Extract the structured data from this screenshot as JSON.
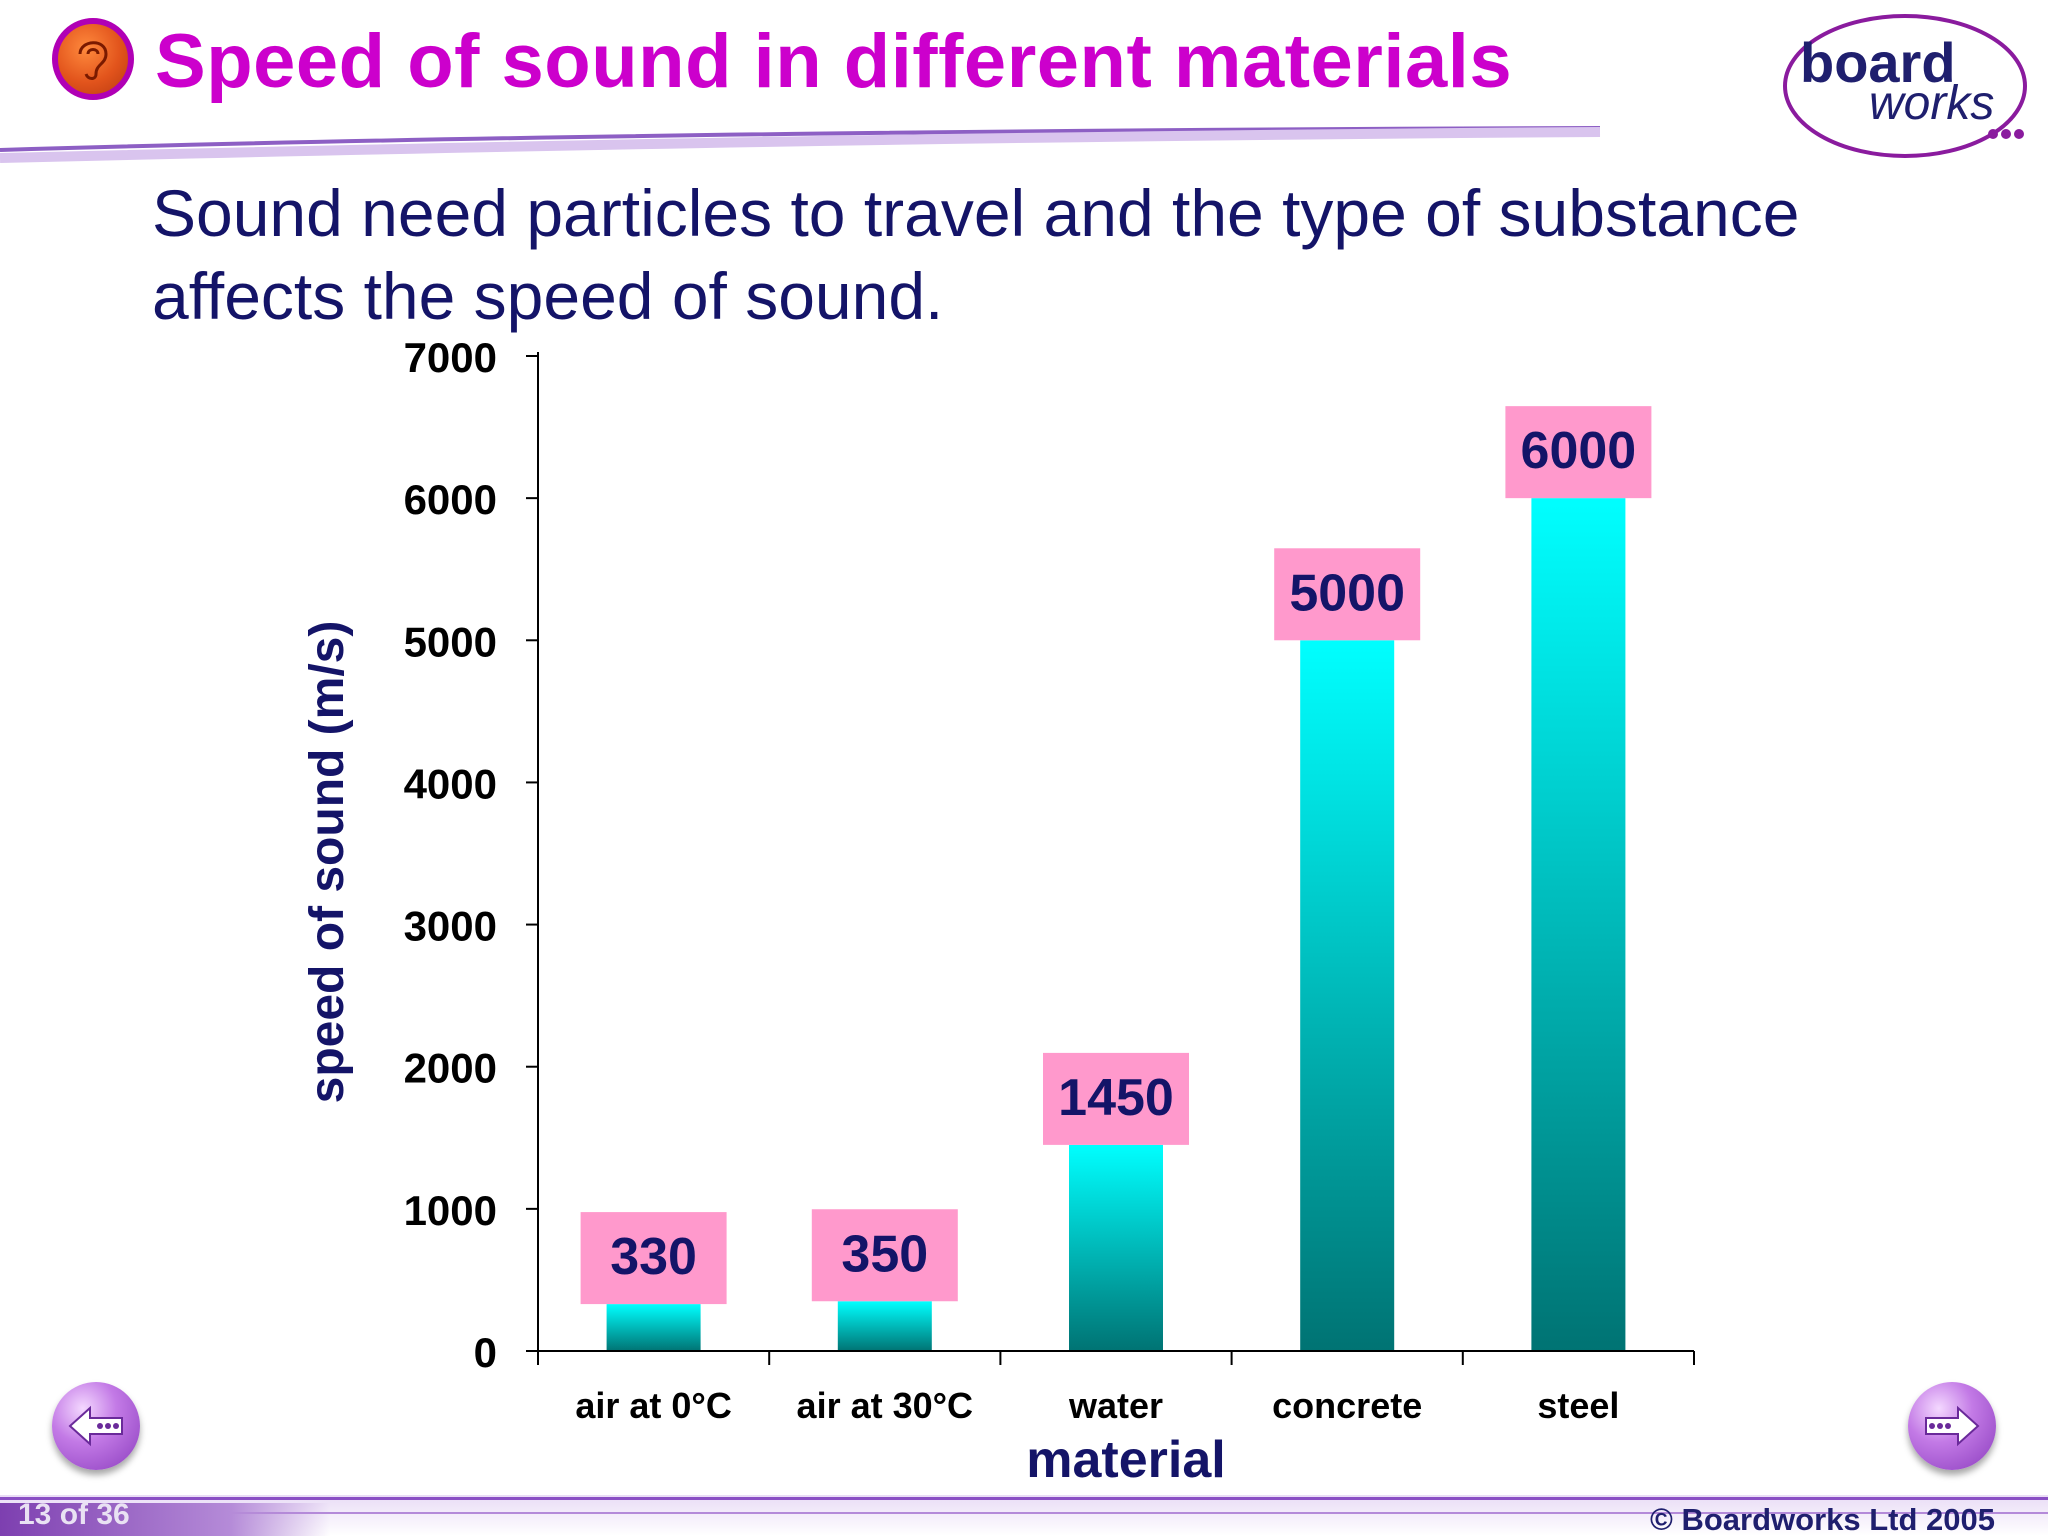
{
  "header": {
    "title": "Speed of sound in different materials",
    "icon": "ear-icon"
  },
  "logo": {
    "word1": "board",
    "word2": "works"
  },
  "subtitle": "Sound need particles to travel and the type of substance affects the speed of sound.",
  "navigation": {
    "prev_icon": "back-arrow-icon",
    "next_icon": "forward-arrow-icon"
  },
  "footer": {
    "slide_number": "13 of 36",
    "copyright": "© Boardworks Ltd 2005"
  },
  "colors": {
    "title": "#cc00cc",
    "text": "#141468",
    "bar_top": "#00ffff",
    "bar_bottom": "#007373",
    "label_box": "#ff99cc"
  },
  "chart_data": {
    "type": "bar",
    "categories": [
      "air at 0°C",
      "air at 30°C",
      "water",
      "concrete",
      "steel"
    ],
    "values": [
      330,
      350,
      1450,
      5000,
      6000
    ],
    "data_labels": [
      "330",
      "350",
      "1450",
      "5000",
      "6000"
    ],
    "xlabel": "material",
    "ylabel": "speed of sound (m/s)",
    "ylim": [
      0,
      7000
    ],
    "yticks": [
      0,
      1000,
      2000,
      3000,
      4000,
      5000,
      6000,
      7000
    ],
    "grid": false,
    "legend": "none"
  }
}
